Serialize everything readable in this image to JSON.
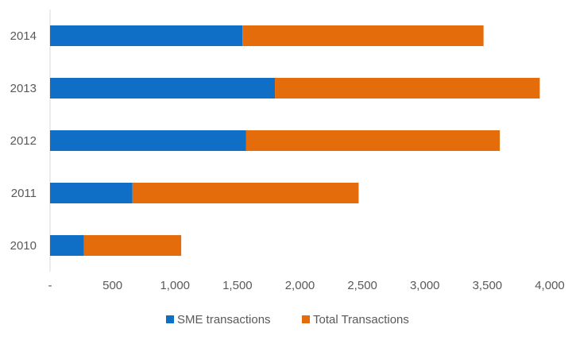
{
  "chart_data": {
    "type": "bar",
    "orientation": "horizontal",
    "stacked": true,
    "title": "",
    "xlabel": "",
    "ylabel": "",
    "categories": [
      "2014",
      "2013",
      "2012",
      "2011",
      "2010"
    ],
    "series": [
      {
        "name": "SME transactions",
        "color": "#0F6FC6",
        "values": [
          1540,
          1800,
          1570,
          660,
          270
        ]
      },
      {
        "name": "Total Transactions",
        "color": "#E46C0A",
        "values": [
          1930,
          2120,
          2030,
          1810,
          780
        ]
      }
    ],
    "xlim": [
      0,
      4000
    ],
    "xticks": [
      0,
      500,
      1000,
      1500,
      2000,
      2500,
      3000,
      3500,
      4000
    ],
    "xtick_labels": [
      "-",
      "500",
      "1,000",
      "1,500",
      "2,000",
      "2,500",
      "3,000",
      "3,500",
      "4,000"
    ],
    "grid": false,
    "legend_position": "bottom"
  }
}
